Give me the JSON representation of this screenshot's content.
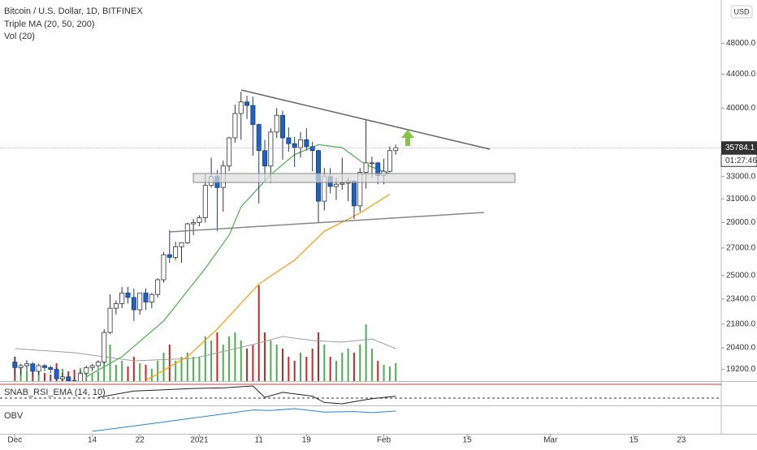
{
  "header": {
    "symbol": "Bitcoin / U.S. Dollar, 1D, BITFINEX",
    "indicators": [
      "Triple MA (20, 50, 200)",
      "Vol (20)"
    ]
  },
  "chart_data": {
    "type": "candlestick",
    "currency": "USD",
    "countdown": "01:27:46",
    "log_scale": true,
    "grid": false,
    "up_color": "#ffffff",
    "down_color": "#1e62c6",
    "volume_up_color": "#4caf50",
    "volume_down_color": "#c62828",
    "x": [
      0,
      1,
      2,
      3,
      4,
      5,
      6,
      7,
      8,
      9,
      10,
      11,
      12,
      13,
      14,
      15,
      16,
      17,
      18,
      19,
      20,
      21,
      22,
      23,
      24,
      25,
      26,
      27,
      28,
      29,
      30,
      31,
      32,
      33,
      34,
      35,
      36,
      37,
      38,
      39,
      40,
      41,
      42,
      43,
      44,
      45,
      46,
      47,
      48,
      49,
      50,
      51,
      52,
      53,
      54,
      55,
      56,
      57,
      58,
      59,
      60,
      61,
      62,
      63,
      64
    ],
    "open": [
      19600,
      19300,
      19400,
      19500,
      19100,
      19400,
      19300,
      19200,
      18700,
      18800,
      18600,
      18400,
      19000,
      19300,
      19400,
      19600,
      21300,
      22800,
      23100,
      23800,
      23500,
      22700,
      23800,
      23200,
      23700,
      24700,
      26500,
      26300,
      27100,
      27400,
      28900,
      29000,
      29400,
      32200,
      33000,
      32000,
      34000,
      36800,
      39400,
      40700,
      40300,
      38200,
      35500,
      34000,
      37400,
      39200,
      36800,
      36200,
      35800,
      36600,
      35900,
      35500,
      30800,
      33000,
      32100,
      32300,
      32400,
      32600,
      30400,
      33400,
      34300,
      34300,
      33100,
      33500,
      35500
    ],
    "high": [
      19900,
      19500,
      19700,
      19600,
      19500,
      19500,
      19400,
      19300,
      19000,
      18900,
      18800,
      19100,
      19400,
      19500,
      19700,
      21500,
      23700,
      23300,
      24200,
      24200,
      24100,
      23800,
      24100,
      23800,
      24800,
      26700,
      28400,
      27500,
      27400,
      29000,
      29300,
      29600,
      33300,
      34800,
      33600,
      34500,
      36900,
      40400,
      41900,
      41400,
      41300,
      38300,
      36600,
      37800,
      40000,
      39700,
      37900,
      36900,
      37400,
      37800,
      36400,
      35600,
      33800,
      33800,
      32900,
      34800,
      32900,
      32600,
      33800,
      38700,
      34900,
      34400,
      34700,
      35900,
      36100
    ],
    "low": [
      18900,
      18900,
      19100,
      18800,
      18900,
      19100,
      19000,
      18600,
      18300,
      18400,
      18200,
      18300,
      18900,
      19100,
      19200,
      19500,
      21200,
      22400,
      22800,
      23100,
      22000,
      22400,
      22700,
      22800,
      23500,
      24500,
      25900,
      26100,
      25900,
      27300,
      28000,
      28700,
      29000,
      32000,
      28300,
      29900,
      33500,
      36300,
      36600,
      38800,
      35000,
      30600,
      32600,
      32400,
      36800,
      34600,
      35400,
      33900,
      34800,
      35500,
      33500,
      29000,
      30000,
      31500,
      30900,
      31800,
      30800,
      29300,
      29900,
      31900,
      32900,
      32300,
      32300,
      33400,
      35100
    ],
    "close": [
      19300,
      19400,
      19500,
      19100,
      19400,
      19300,
      19200,
      18700,
      18800,
      18600,
      18400,
      19000,
      19300,
      19400,
      19600,
      21300,
      22800,
      23100,
      23800,
      23500,
      22700,
      23800,
      23200,
      23700,
      24700,
      26500,
      26300,
      27100,
      27400,
      28900,
      29000,
      29400,
      32200,
      33000,
      32000,
      34000,
      36800,
      39400,
      40700,
      40300,
      38200,
      35500,
      34000,
      37400,
      39200,
      36800,
      36200,
      35800,
      36600,
      35900,
      35500,
      30800,
      33000,
      32100,
      32300,
      32400,
      32600,
      30400,
      33400,
      34300,
      34300,
      33100,
      33500,
      35500,
      35784.1
    ],
    "volume": [
      30,
      18,
      12,
      20,
      15,
      10,
      8,
      22,
      15,
      12,
      14,
      16,
      10,
      9,
      12,
      30,
      45,
      20,
      25,
      18,
      30,
      22,
      20,
      15,
      25,
      35,
      45,
      25,
      30,
      35,
      30,
      30,
      55,
      50,
      60,
      45,
      55,
      60,
      50,
      40,
      45,
      118,
      60,
      50,
      45,
      40,
      30,
      25,
      35,
      30,
      40,
      60,
      45,
      30,
      25,
      35,
      40,
      35,
      45,
      70,
      40,
      25,
      20,
      18,
      22
    ],
    "volume_ma": {
      "color": "#9e9e9e",
      "x": [
        0,
        10,
        20,
        30,
        40,
        45,
        50,
        55,
        60,
        64
      ],
      "values": [
        40,
        35,
        25,
        28,
        45,
        55,
        50,
        48,
        52,
        40
      ]
    },
    "moving_averages": [
      {
        "color": "#4caf50",
        "x": [
          12,
          18,
          25,
          32,
          36,
          38,
          43,
          47,
          51,
          55,
          59,
          63
        ],
        "values": [
          18800,
          19900,
          22000,
          25500,
          28000,
          30300,
          33200,
          35100,
          36100,
          35800,
          34100,
          33300
        ]
      },
      {
        "color": "#ff9800",
        "x": [
          22,
          29,
          34,
          41,
          47,
          52,
          58,
          63
        ],
        "values": [
          18600,
          19900,
          21500,
          24400,
          26100,
          28300,
          29800,
          31400
        ]
      }
    ],
    "xlim": [
      -2.5,
      118.7
    ],
    "xticks": [
      {
        "value": 0,
        "label": "Dec"
      },
      {
        "value": 13,
        "label": "14"
      },
      {
        "value": 21,
        "label": "22"
      },
      {
        "value": 31,
        "label": "2021"
      },
      {
        "value": 41,
        "label": "11"
      },
      {
        "value": 49,
        "label": "19"
      },
      {
        "value": 62,
        "label": "Feb"
      },
      {
        "value": 76,
        "label": "15"
      },
      {
        "value": 90,
        "label": "Mar"
      },
      {
        "value": 104,
        "label": "15"
      },
      {
        "value": 112,
        "label": "23"
      }
    ],
    "ylim": [
      18580,
      54200
    ],
    "yticks": [
      {
        "value": 19200,
        "label": "19200.0"
      },
      {
        "value": 20400,
        "label": "20400.0"
      },
      {
        "value": 21800,
        "label": "21800.0"
      },
      {
        "value": 23400,
        "label": "23400.0"
      },
      {
        "value": 25000,
        "label": "25000.0"
      },
      {
        "value": 27000,
        "label": "27000.0"
      },
      {
        "value": 29000,
        "label": "29000.0"
      },
      {
        "value": 31000,
        "label": "31000.0"
      },
      {
        "value": 33000,
        "label": "33000.0"
      },
      {
        "value": 40000,
        "label": "40000.0"
      },
      {
        "value": 44000,
        "label": "44000.0"
      },
      {
        "value": 48000,
        "label": "48000.0"
      }
    ],
    "rsi": {
      "title": "SNAB_RSI_EMA (14, 10)",
      "color": "#222222",
      "x": [
        14,
        20,
        25,
        30,
        35,
        40,
        42,
        45,
        50,
        52,
        55,
        58,
        60,
        64
      ],
      "values": [
        60,
        70,
        72,
        74,
        75,
        78,
        60,
        68,
        62,
        52,
        50,
        55,
        58,
        62
      ]
    },
    "obv": {
      "title": "OBV",
      "color": "#1e88e5",
      "x": [
        13,
        20,
        25,
        30,
        35,
        40,
        43,
        47,
        52,
        57,
        60,
        64
      ],
      "values": [
        0,
        20,
        35,
        50,
        65,
        80,
        78,
        85,
        72,
        74,
        70,
        76
      ]
    }
  }
}
